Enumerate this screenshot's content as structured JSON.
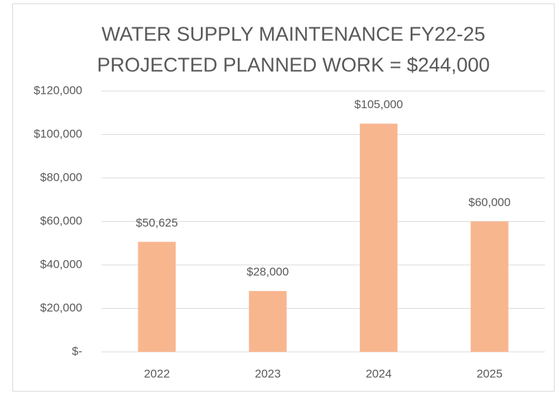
{
  "chart_data": {
    "type": "bar",
    "title": [
      "WATER SUPPLY MAINTENANCE FY22-25",
      "PROJECTED PLANNED WORK = $244,000"
    ],
    "categories": [
      "2022",
      "2023",
      "2024",
      "2025"
    ],
    "values": [
      50625,
      28000,
      105000,
      60000
    ],
    "value_labels": [
      "$50,625",
      "$28,000",
      "$105,000",
      "$60,000"
    ],
    "color": "#f8b68f",
    "ylim": [
      0,
      120000
    ],
    "yticks": [
      {
        "value": 0,
        "label": "$-"
      },
      {
        "value": 20000,
        "label": "$20,000"
      },
      {
        "value": 40000,
        "label": "$40,000"
      },
      {
        "value": 60000,
        "label": "$60,000"
      },
      {
        "value": 80000,
        "label": "$80,000"
      },
      {
        "value": 100000,
        "label": "$100,000"
      },
      {
        "value": 120000,
        "label": "$120,000"
      }
    ],
    "grid": true
  }
}
